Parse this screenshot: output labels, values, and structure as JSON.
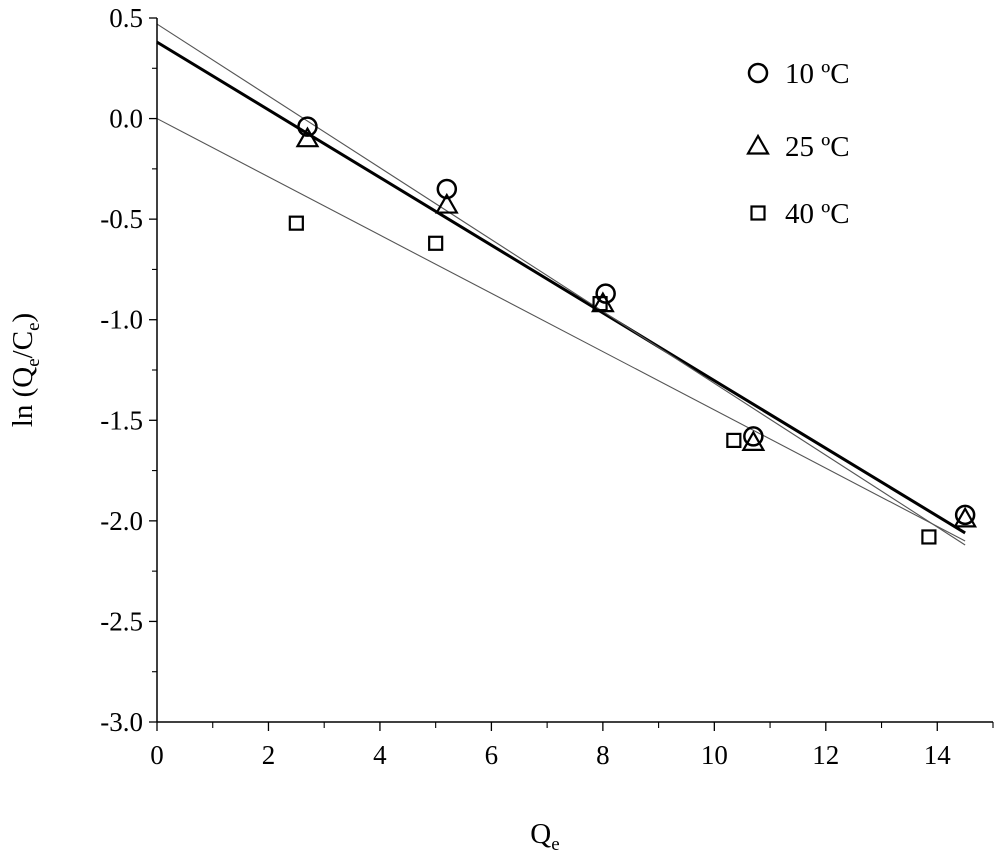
{
  "chart_data": {
    "type": "scatter",
    "title": "",
    "xlabel_main": "Q",
    "xlabel_sub": "e",
    "ylabel_main": "ln (Q",
    "ylabel_sub1": "e",
    "ylabel_mid": "/C",
    "ylabel_sub2": "e",
    "ylabel_end": ")",
    "xlim": [
      0,
      15
    ],
    "ylim": [
      -3.0,
      0.5
    ],
    "x_ticks": [
      0,
      2,
      4,
      6,
      8,
      10,
      12,
      14
    ],
    "x_tick_labels": [
      "0",
      "2",
      "4",
      "6",
      "8",
      "10",
      "12",
      "14"
    ],
    "y_ticks": [
      0.5,
      0.0,
      -0.5,
      -1.0,
      -1.5,
      -2.0,
      -2.5,
      -3.0
    ],
    "y_tick_labels": [
      "0.5",
      "0.0",
      "-0.5",
      "-1.0",
      "-1.5",
      "-2.0",
      "-2.5",
      "-3.0"
    ],
    "grid": false,
    "legend_position": "top-right",
    "series": [
      {
        "name": "10 ºC",
        "marker": "circle",
        "x": [
          2.7,
          5.2,
          8.05,
          10.7,
          14.5
        ],
        "y": [
          -0.04,
          -0.35,
          -0.87,
          -1.58,
          -1.97
        ]
      },
      {
        "name": "25 ºC",
        "marker": "triangle",
        "x": [
          2.7,
          5.2,
          8.0,
          10.7,
          14.5
        ],
        "y": [
          -0.1,
          -0.43,
          -0.92,
          -1.61,
          -1.99
        ]
      },
      {
        "name": "40 ºC",
        "marker": "square",
        "x": [
          2.5,
          5.0,
          7.95,
          10.35,
          13.85
        ],
        "y": [
          -0.52,
          -0.62,
          -0.92,
          -1.6,
          -2.08
        ]
      }
    ],
    "fit_lines": [
      {
        "x": [
          0,
          14.5
        ],
        "y": [
          0.38,
          -2.06
        ],
        "style": "bold"
      },
      {
        "x": [
          0,
          14.5
        ],
        "y": [
          0.47,
          -2.12
        ],
        "style": "thin"
      },
      {
        "x": [
          0,
          14.5
        ],
        "y": [
          0.0,
          -2.1
        ],
        "style": "thin"
      }
    ]
  }
}
